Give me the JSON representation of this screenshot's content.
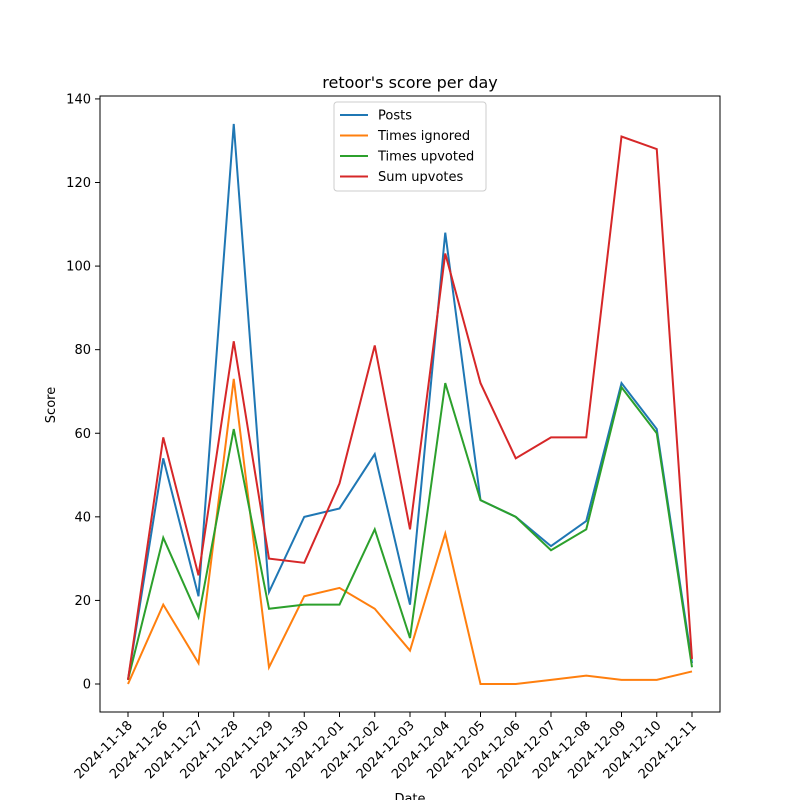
{
  "chart_data": {
    "type": "line",
    "title": "retoor's score per day",
    "xlabel": "Date",
    "ylabel": "Score",
    "ylim": [
      -6.7,
      140.7
    ],
    "yticks": [
      0,
      20,
      40,
      60,
      80,
      100,
      120,
      140
    ],
    "grid": false,
    "legend_position": "upper center",
    "categories": [
      "2024-11-18",
      "2024-11-26",
      "2024-11-27",
      "2024-11-28",
      "2024-11-29",
      "2024-11-30",
      "2024-12-01",
      "2024-12-02",
      "2024-12-03",
      "2024-12-04",
      "2024-12-05",
      "2024-12-06",
      "2024-12-07",
      "2024-12-08",
      "2024-12-09",
      "2024-12-10",
      "2024-12-11"
    ],
    "series": [
      {
        "name": "Posts",
        "color": "#1f77b4",
        "values": [
          1,
          54,
          21,
          134,
          22,
          40,
          42,
          55,
          19,
          108,
          44,
          40,
          33,
          39,
          72,
          61,
          5
        ]
      },
      {
        "name": "Times ignored",
        "color": "#ff7f0e",
        "values": [
          0,
          19,
          5,
          73,
          4,
          21,
          23,
          18,
          8,
          36,
          0,
          0,
          1,
          2,
          1,
          1,
          3
        ]
      },
      {
        "name": "Times upvoted",
        "color": "#2ca02c",
        "values": [
          1,
          35,
          16,
          61,
          18,
          19,
          19,
          37,
          11,
          72,
          44,
          40,
          32,
          37,
          71,
          60,
          4
        ]
      },
      {
        "name": "Sum upvotes",
        "color": "#d62728",
        "values": [
          1,
          59,
          26,
          82,
          30,
          29,
          48,
          81,
          37,
          103,
          72,
          54,
          59,
          59,
          131,
          128,
          6
        ]
      }
    ]
  }
}
